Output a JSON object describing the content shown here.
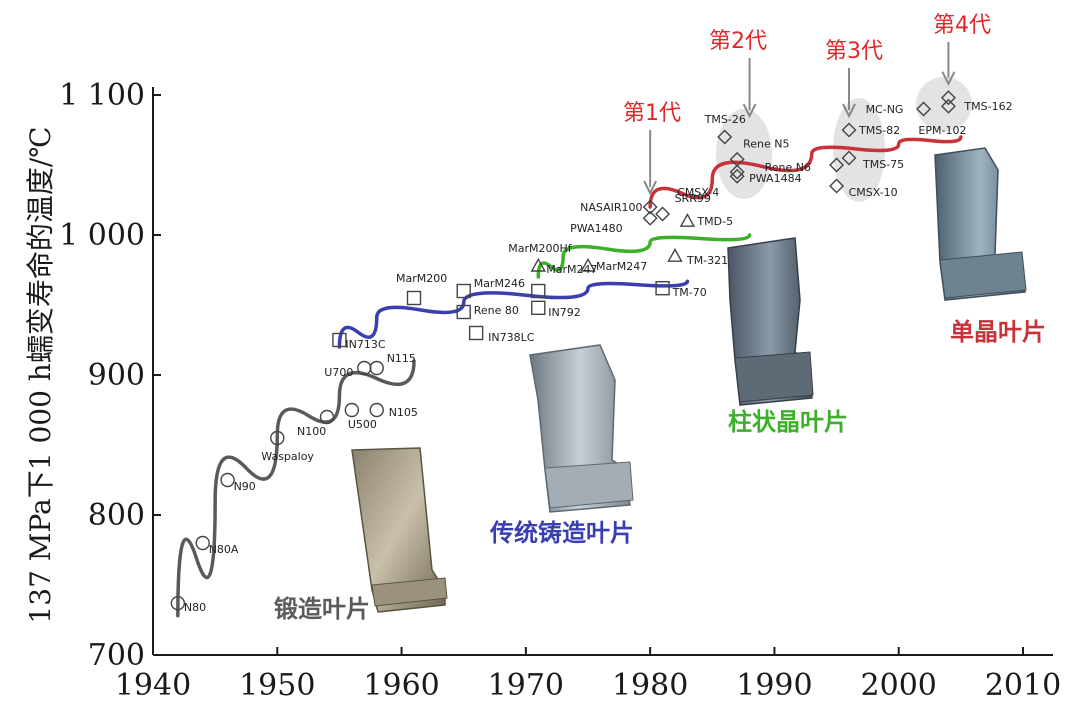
{
  "chart_data": {
    "type": "scatter",
    "title": "",
    "xlabel": "",
    "ylabel": "137 MPa下1 000 h蠕变寿命的温度/℃",
    "xlim": [
      1940,
      2010
    ],
    "ylim": [
      700,
      1100
    ],
    "x_ticks": [
      "1940",
      "1950",
      "1960",
      "1970",
      "1980",
      "1990",
      "2000",
      "2010"
    ],
    "y_ticks": [
      "700",
      "800",
      "900",
      "1 000",
      "1 100"
    ],
    "grid": false,
    "series": [
      {
        "name": "锻造叶片",
        "color": "#5a5a5a",
        "marker": "circle",
        "points": [
          {
            "label": "N80",
            "x": 1942,
            "y": 737
          },
          {
            "label": "N80A",
            "x": 1944,
            "y": 780
          },
          {
            "label": "N90",
            "x": 1946,
            "y": 825
          },
          {
            "label": "Waspaloy",
            "x": 1950,
            "y": 855
          },
          {
            "label": "N100",
            "x": 1954,
            "y": 870
          },
          {
            "label": "U500",
            "x": 1956,
            "y": 875
          },
          {
            "label": "U700",
            "x": 1957,
            "y": 905
          },
          {
            "label": "N115",
            "x": 1958,
            "y": 905
          },
          {
            "label": "N105",
            "x": 1958,
            "y": 875
          }
        ],
        "trend": [
          [
            1942,
            728
          ],
          [
            1945,
            810
          ],
          [
            1950,
            857
          ],
          [
            1955,
            885
          ],
          [
            1961,
            910
          ]
        ]
      },
      {
        "name": "传统铸造叶片",
        "color": "#3a3fb0",
        "marker": "square",
        "points": [
          {
            "label": "IN713C",
            "x": 1955,
            "y": 925
          },
          {
            "label": "MarM200",
            "x": 1961,
            "y": 955
          },
          {
            "label": "MarM246",
            "x": 1965,
            "y": 960
          },
          {
            "label": "Rene 80",
            "x": 1965,
            "y": 945
          },
          {
            "label": "IN738LC",
            "x": 1966,
            "y": 930
          },
          {
            "label": "MarM247",
            "x": 1971,
            "y": 960
          },
          {
            "label": "IN792",
            "x": 1971,
            "y": 948
          },
          {
            "label": "TM-70",
            "x": 1981,
            "y": 962
          }
        ],
        "trend": [
          [
            1955,
            920
          ],
          [
            1958,
            941
          ],
          [
            1965,
            952
          ],
          [
            1975,
            962
          ],
          [
            1983,
            967
          ]
        ]
      },
      {
        "name": "柱状晶叶片",
        "color": "#3cb028",
        "marker": "triangle",
        "points": [
          {
            "label": "MarM200Hf",
            "x": 1971,
            "y": 978
          },
          {
            "label": "MarM247",
            "x": 1975,
            "y": 978
          },
          {
            "label": "TM-321",
            "x": 1982,
            "y": 985
          },
          {
            "label": "TMD-5",
            "x": 1983,
            "y": 1010
          }
        ],
        "trend": [
          [
            1971,
            970
          ],
          [
            1973,
            985
          ],
          [
            1980,
            995
          ],
          [
            1988,
            1000
          ]
        ]
      },
      {
        "name": "单晶叶片",
        "color": "#c8323a",
        "marker": "diamond",
        "points": [
          {
            "label": "NASAIR100",
            "x": 1980,
            "y": 1020
          },
          {
            "label": "PWA1480",
            "x": 1980,
            "y": 1012
          },
          {
            "label": "SRR99",
            "x": 1981,
            "y": 1015
          },
          {
            "label": "TMS-26",
            "x": 1986,
            "y": 1070
          },
          {
            "label": "Rene N5",
            "x": 1987,
            "y": 1054
          },
          {
            "label": "CMSX-4",
            "x": 1987,
            "y": 1042
          },
          {
            "label": "PWA1484",
            "x": 1987,
            "y": 1045
          },
          {
            "label": "TMS-82",
            "x": 1996,
            "y": 1075
          },
          {
            "label": "Rene N6",
            "x": 1995,
            "y": 1050
          },
          {
            "label": "TMS-75",
            "x": 1996,
            "y": 1055
          },
          {
            "label": "CMSX-10",
            "x": 1995,
            "y": 1035
          },
          {
            "label": "MC-NG",
            "x": 2002,
            "y": 1090
          },
          {
            "label": "TMS-162",
            "x": 2004,
            "y": 1098
          },
          {
            "label": "EPM-102",
            "x": 2004,
            "y": 1092
          }
        ],
        "trend": [
          [
            1980,
            1020
          ],
          [
            1985,
            1040
          ],
          [
            1993,
            1058
          ],
          [
            2000,
            1065
          ],
          [
            2005,
            1070
          ]
        ]
      }
    ],
    "generations": [
      {
        "label": "第1代",
        "x": 1980,
        "y_arrow_end": 1030
      },
      {
        "label": "第2代",
        "x": 1988,
        "y_arrow_end": 1085
      },
      {
        "label": "第3代",
        "x": 1996,
        "y_arrow_end": 1085
      },
      {
        "label": "第4代",
        "x": 2004,
        "y_arrow_end": 1108
      }
    ],
    "category_labels": [
      {
        "text": "锻造叶片",
        "color": "#5a5a5a"
      },
      {
        "text": "传统铸造叶片",
        "color": "#3a3fb0"
      },
      {
        "text": "柱状晶叶片",
        "color": "#3cb028"
      },
      {
        "text": "单晶叶片",
        "color": "#c8323a"
      }
    ]
  }
}
